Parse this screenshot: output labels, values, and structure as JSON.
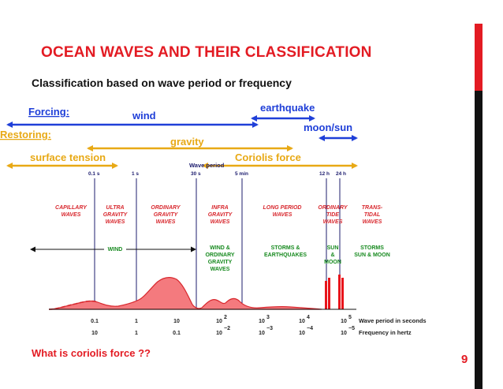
{
  "slide": {
    "title": "OCEAN WAVES AND THEIR CLASSIFICATION",
    "subtitle": "Classification based on wave period or frequency",
    "question": "What is coriolis force ??",
    "page_number": "9"
  },
  "forcing": {
    "heading": "Forcing:",
    "wind": "wind",
    "earthquake": "earthquake",
    "moon_sun": "moon/sun"
  },
  "restoring": {
    "heading": "Restoring:",
    "gravity": "gravity",
    "surface_tension": "surface tension",
    "coriolis": "Coriolis force"
  },
  "period_axis": {
    "title": "Wave period",
    "marks": [
      "0.1 s",
      "1 s",
      "30 s",
      "5 min",
      "12 h",
      "24 h"
    ]
  },
  "wave_types": [
    {
      "line1": "CAPILLARY",
      "line2": "WAVES",
      "line3": ""
    },
    {
      "line1": "ULTRA",
      "line2": "GRAVITY",
      "line3": "WAVES"
    },
    {
      "line1": "ORDINARY",
      "line2": "GRAVITY",
      "line3": "WAVES"
    },
    {
      "line1": "INFRA",
      "line2": "GRAVITY",
      "line3": "WAVES"
    },
    {
      "line1": "LONG PERIOD",
      "line2": "WAVES",
      "line3": ""
    },
    {
      "line1": "ORDINARY",
      "line2": "TIDE",
      "line3": "WAVES"
    },
    {
      "line1": "TRANS-",
      "line2": "TIDAL",
      "line3": "WAVES"
    }
  ],
  "generating_forces": {
    "wind": "WIND",
    "wind_gravity": [
      "WIND &",
      "ORDINARY",
      "GRAVITY",
      "WAVES"
    ],
    "storms_eq": [
      "STORMS &",
      "EARTHQUAKES"
    ],
    "sun_moon": [
      "SUN",
      "&",
      "MOON"
    ],
    "storms_sun_moon": [
      "STORMS",
      "SUN & MOON"
    ]
  },
  "bottom_axis": {
    "period_ticks": [
      {
        "base": "0.1",
        "exp": ""
      },
      {
        "base": "1",
        "exp": ""
      },
      {
        "base": "10",
        "exp": ""
      },
      {
        "base": "10",
        "exp": "2"
      },
      {
        "base": "10",
        "exp": "3"
      },
      {
        "base": "10",
        "exp": "4"
      },
      {
        "base": "10",
        "exp": "5"
      }
    ],
    "frequency_ticks": [
      {
        "base": "10",
        "exp": ""
      },
      {
        "base": "1",
        "exp": ""
      },
      {
        "base": "0.1",
        "exp": ""
      },
      {
        "base": "10",
        "exp": "−2"
      },
      {
        "base": "10",
        "exp": "−3"
      },
      {
        "base": "10",
        "exp": "−4"
      },
      {
        "base": "10",
        "exp": "−5"
      }
    ],
    "period_label": "Wave period in seconds",
    "frequency_label": "Frequency in hertz"
  },
  "colors": {
    "accent_red": "#e31b23",
    "arrow_blue": "#1f3fd8",
    "arrow_orange": "#e8a915",
    "energy_fill": "#f47a7e",
    "energy_stroke": "#d8282e",
    "force_green": "#178a1f",
    "divider_navy": "#1c1c6e"
  }
}
